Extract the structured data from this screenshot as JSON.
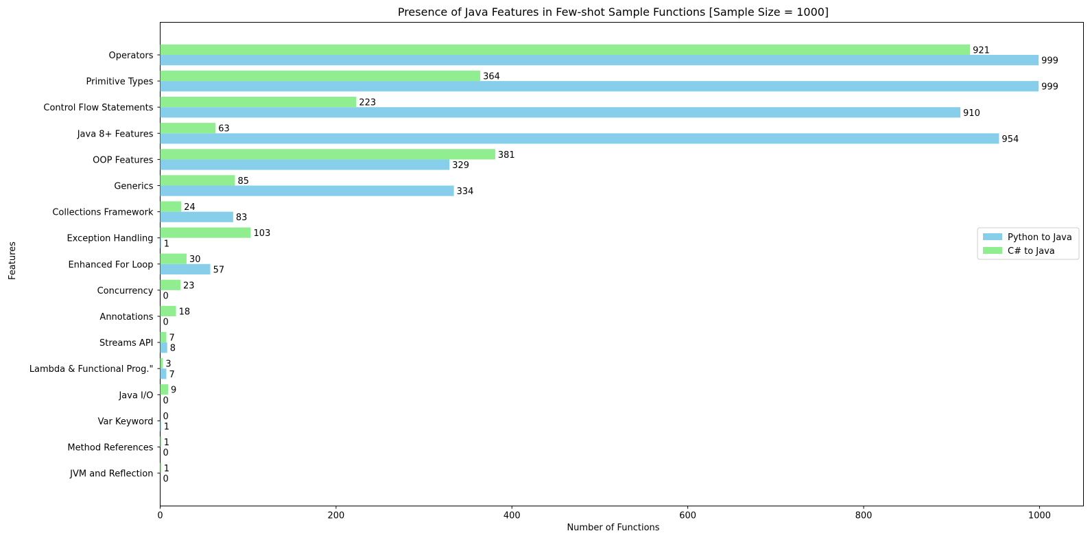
{
  "chart_data": {
    "type": "bar",
    "orientation": "horizontal",
    "title": "Presence of Java Features in Few-shot Sample Functions [Sample Size = 1000]",
    "xlabel": "Number of Functions",
    "ylabel": "Features",
    "xlim": [
      0,
      1050
    ],
    "xticks": [
      0,
      200,
      400,
      600,
      800,
      1000
    ],
    "grid": false,
    "legend_position": "center-right",
    "categories": [
      "Operators",
      "Primitive Types",
      "Control Flow Statements",
      "Java 8+ Features",
      "OOP Features",
      "Generics",
      "Collections Framework",
      "Exception Handling",
      "Enhanced For Loop",
      "Concurrency",
      "Annotations",
      "Streams API",
      "Lambda & Functional Prog.\"",
      "Java I/O",
      "Var Keyword",
      "Method References",
      "JVM and Reflection"
    ],
    "series": [
      {
        "name": "Python to Java",
        "color": "#87ceeb",
        "values": [
          999,
          999,
          910,
          954,
          329,
          334,
          83,
          1,
          57,
          0,
          0,
          8,
          7,
          0,
          1,
          0,
          0
        ]
      },
      {
        "name": "C# to Java",
        "color": "#90ee90",
        "values": [
          921,
          364,
          223,
          63,
          381,
          85,
          24,
          103,
          30,
          23,
          18,
          7,
          3,
          9,
          0,
          1,
          1
        ]
      }
    ]
  }
}
